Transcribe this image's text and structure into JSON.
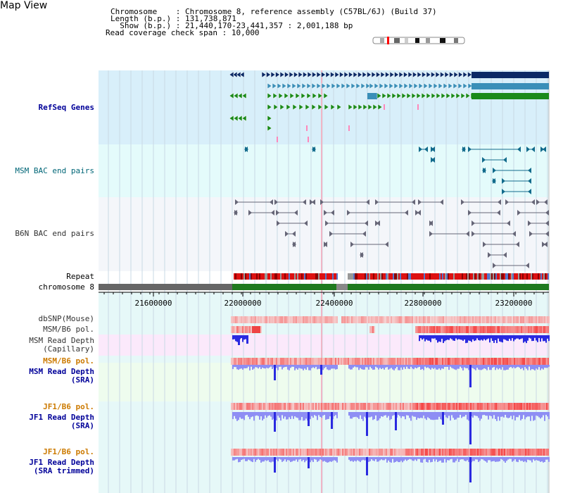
{
  "page": {
    "title": "Map View",
    "info": {
      "chromosome_label": "Chromosome    ",
      "chromosome_value": ": Chromosome 8, reference assembly (C57BL/6J) (Build 37)",
      "length_label": "Length (b.p.)",
      "length_value": ": 131,738,871",
      "show_label": "  Show (b.p.)",
      "show_value": ": 21,440,170-23,441,357 : 2,001,188 bp",
      "coverage_label": "Read coverage check span",
      "coverage_value": ": 10,000"
    }
  },
  "tracks": {
    "refseq": "RefSeq Genes",
    "msm_bac": "MSM BAC end pairs",
    "b6n_bac": "B6N BAC end pairs",
    "repeat": "Repeat",
    "chromosome": "chromosome 8",
    "dbsnp": "dbSNP(Mouse)",
    "msm_b6_pol_1": "MSM/B6 pol.",
    "msm_depth_cap": "MSM Read Depth\n(Capillary)",
    "msm_b6_pol_2": "MSM/B6 pol.",
    "msm_depth_sra": "MSM Read Depth\n(SRA)",
    "jf1_b6_pol_1": "JF1/B6 pol.",
    "jf1_depth_sra": "JF1 Read Depth\n(SRA)",
    "jf1_b6_pol_2": "JF1/B6 pol.",
    "jf1_depth_trim": "JF1 Read Depth\n(SRA trimmed)"
  },
  "axis": {
    "ticks": [
      "21600000",
      "22000000",
      "22400000",
      "22800000",
      "23200000"
    ]
  },
  "colors": {
    "refseq_bg": "#d8effa",
    "bac_msm_bg": "#e4fbfb",
    "bac_b6n_bg": "#f4f6fa",
    "gene_dark": "#0b2a66",
    "gene_mid": "#3a8fb8",
    "gene_green": "#1a8a1a",
    "chrom_green": "#1f7a1f",
    "depth_dark": "#2a2ae0",
    "depth_light": "#8e8ef4",
    "pol_red": "#ee3333"
  }
}
